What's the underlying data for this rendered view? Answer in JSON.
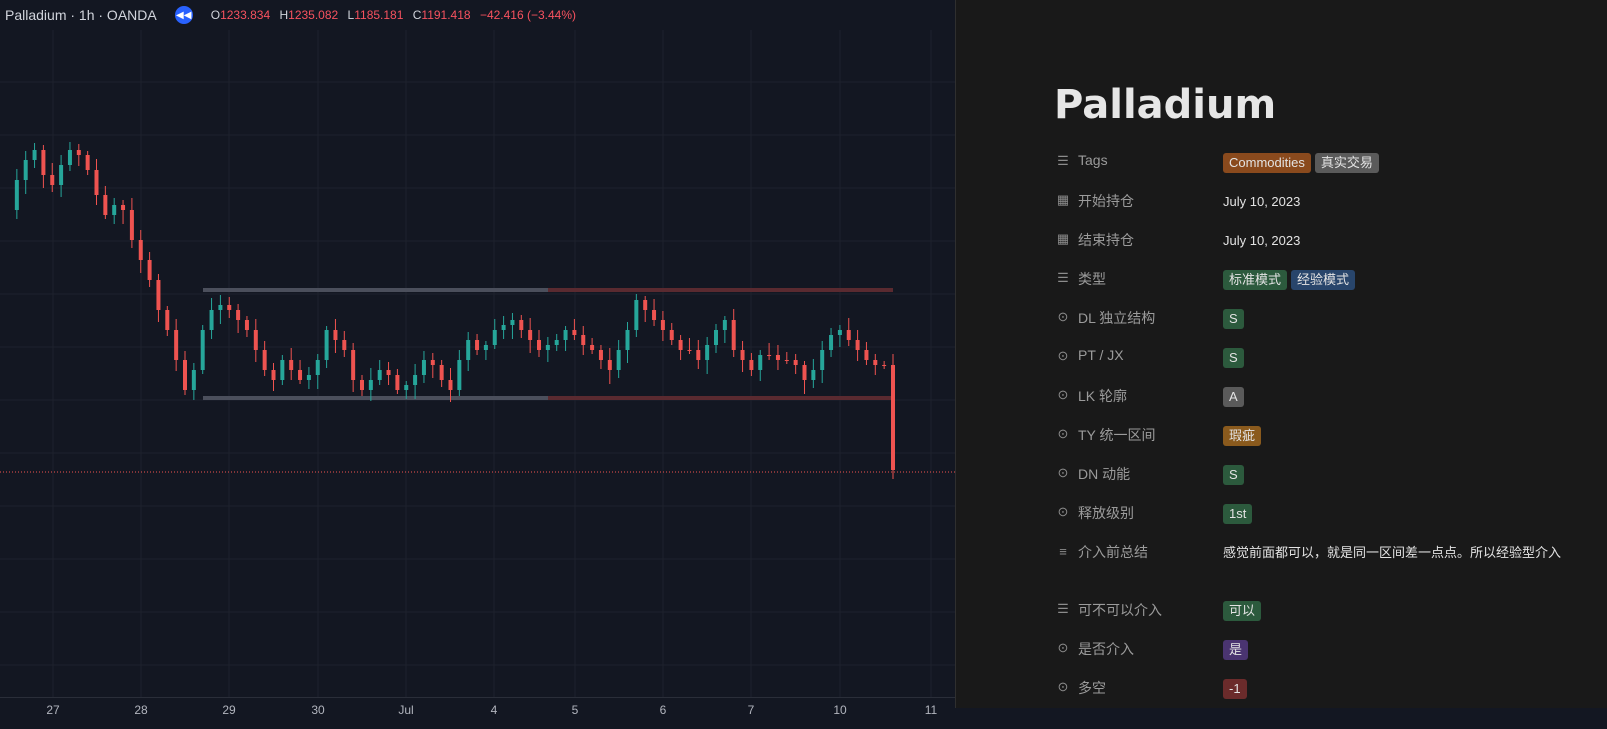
{
  "chart": {
    "symbol_title": "Palladium · 1h · OANDA",
    "ohlc": [
      {
        "k": "O",
        "v": "1233.834"
      },
      {
        "k": "H",
        "v": "1235.082"
      },
      {
        "k": "L",
        "v": "1185.181"
      },
      {
        "k": "C",
        "v": "1191.418"
      }
    ],
    "change": "−42.416 (−3.44%)",
    "x_labels": [
      "27",
      "28",
      "29",
      "30",
      "Jul",
      "4",
      "5",
      "6",
      "7",
      "10",
      "11"
    ],
    "colors": {
      "up": "#26a69a",
      "down": "#ef5350",
      "background": "#131722",
      "grid": "#1e222d"
    }
  },
  "panel": {
    "title": "Palladium",
    "properties": [
      {
        "icon": "list-icon",
        "key": "Tags",
        "tags": [
          {
            "text": "Commodities",
            "color": "#8a4a1d"
          },
          {
            "text": "真实交易",
            "color": "#5a5a5a"
          }
        ]
      },
      {
        "icon": "calendar-icon",
        "key": "开始持仓",
        "text": "July 10, 2023"
      },
      {
        "icon": "calendar-icon",
        "key": "结束持仓",
        "text": "July 10, 2023"
      },
      {
        "icon": "list-icon",
        "key": "类型",
        "tags": [
          {
            "text": "标准模式",
            "color": "#2c5a3d"
          },
          {
            "text": "经验模式",
            "color": "#28456b"
          }
        ]
      },
      {
        "icon": "select-icon",
        "key": "DL 独立结构",
        "tags": [
          {
            "text": "S",
            "color": "#2c5a3d"
          }
        ]
      },
      {
        "icon": "select-icon",
        "key": "PT / JX",
        "tags": [
          {
            "text": "S",
            "color": "#2c5a3d"
          }
        ]
      },
      {
        "icon": "select-icon",
        "key": "LK 轮廓",
        "tags": [
          {
            "text": "A",
            "color": "#5a5a5a"
          }
        ]
      },
      {
        "icon": "select-icon",
        "key": "TY 统一区间",
        "tags": [
          {
            "text": "瑕疵",
            "color": "#8a5a1d"
          }
        ]
      },
      {
        "icon": "select-icon",
        "key": "DN 动能",
        "tags": [
          {
            "text": "S",
            "color": "#2c5a3d"
          }
        ]
      },
      {
        "icon": "select-icon",
        "key": "释放级别",
        "tags": [
          {
            "text": "1st",
            "color": "#2c5a3d"
          }
        ]
      },
      {
        "icon": "text-icon",
        "key": "介入前总结",
        "text": "感觉前面都可以，就是同一区间差一点点。所以经验型介入"
      },
      {
        "icon": "list-icon",
        "key": "可不可以介入",
        "tags": [
          {
            "text": "可以",
            "color": "#2c5a3d"
          }
        ]
      },
      {
        "icon": "select-icon",
        "key": "是否介入",
        "tags": [
          {
            "text": "是",
            "color": "#4a3470"
          }
        ]
      },
      {
        "icon": "select-icon",
        "key": "多空",
        "tags": [
          {
            "text": "-1",
            "color": "#6b2b2b"
          }
        ]
      }
    ]
  }
}
